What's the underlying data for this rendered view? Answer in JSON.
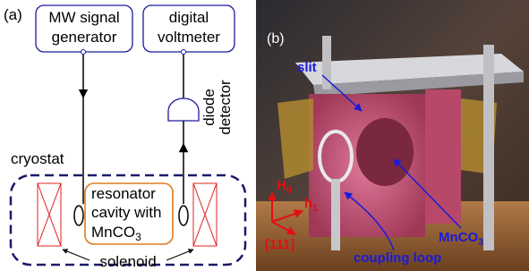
{
  "panel_a": {
    "label": "(a)",
    "generator": [
      "MW signal",
      "generator"
    ],
    "voltmeter": [
      "digital",
      "voltmeter"
    ],
    "detector": [
      "diode",
      "detector"
    ],
    "cryostat": "cryostat",
    "resonator": [
      "resonator",
      "cavity with",
      [
        "MnCO",
        "3"
      ]
    ],
    "solenoid": "solenoid"
  },
  "panel_b": {
    "label": "(b)",
    "slit": "slit",
    "field": [
      "H",
      "0"
    ],
    "probe": [
      "h",
      "1"
    ],
    "axis": "[111]",
    "sample": [
      "MnCO",
      "3"
    ],
    "loop": "coupling loop"
  }
}
